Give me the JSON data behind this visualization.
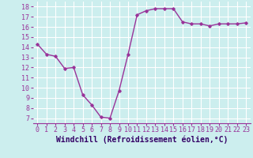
{
  "x": [
    0,
    1,
    2,
    3,
    4,
    5,
    6,
    7,
    8,
    9,
    10,
    11,
    12,
    13,
    14,
    15,
    16,
    17,
    18,
    19,
    20,
    21,
    22,
    23
  ],
  "y": [
    14.3,
    13.3,
    13.1,
    11.9,
    12.0,
    9.3,
    8.3,
    7.1,
    7.0,
    9.7,
    13.3,
    17.2,
    17.6,
    17.8,
    17.8,
    17.8,
    16.5,
    16.3,
    16.3,
    16.1,
    16.3,
    16.3,
    16.3,
    16.4
  ],
  "xlabel": "Windchill (Refroidissement éolien,°C)",
  "ylim": [
    6.5,
    18.5
  ],
  "xlim": [
    -0.5,
    23.5
  ],
  "yticks": [
    7,
    8,
    9,
    10,
    11,
    12,
    13,
    14,
    15,
    16,
    17,
    18
  ],
  "xticks": [
    0,
    1,
    2,
    3,
    4,
    5,
    6,
    7,
    8,
    9,
    10,
    11,
    12,
    13,
    14,
    15,
    16,
    17,
    18,
    19,
    20,
    21,
    22,
    23
  ],
  "line_color": "#993399",
  "marker": "D",
  "marker_size": 1.8,
  "bg_color": "#cceeee",
  "grid_color": "#ffffff",
  "axis_label_color": "#330066",
  "tick_label_color": "#993399",
  "tick_label_fontsize": 6,
  "xlabel_fontsize": 7,
  "line_width": 1.0
}
